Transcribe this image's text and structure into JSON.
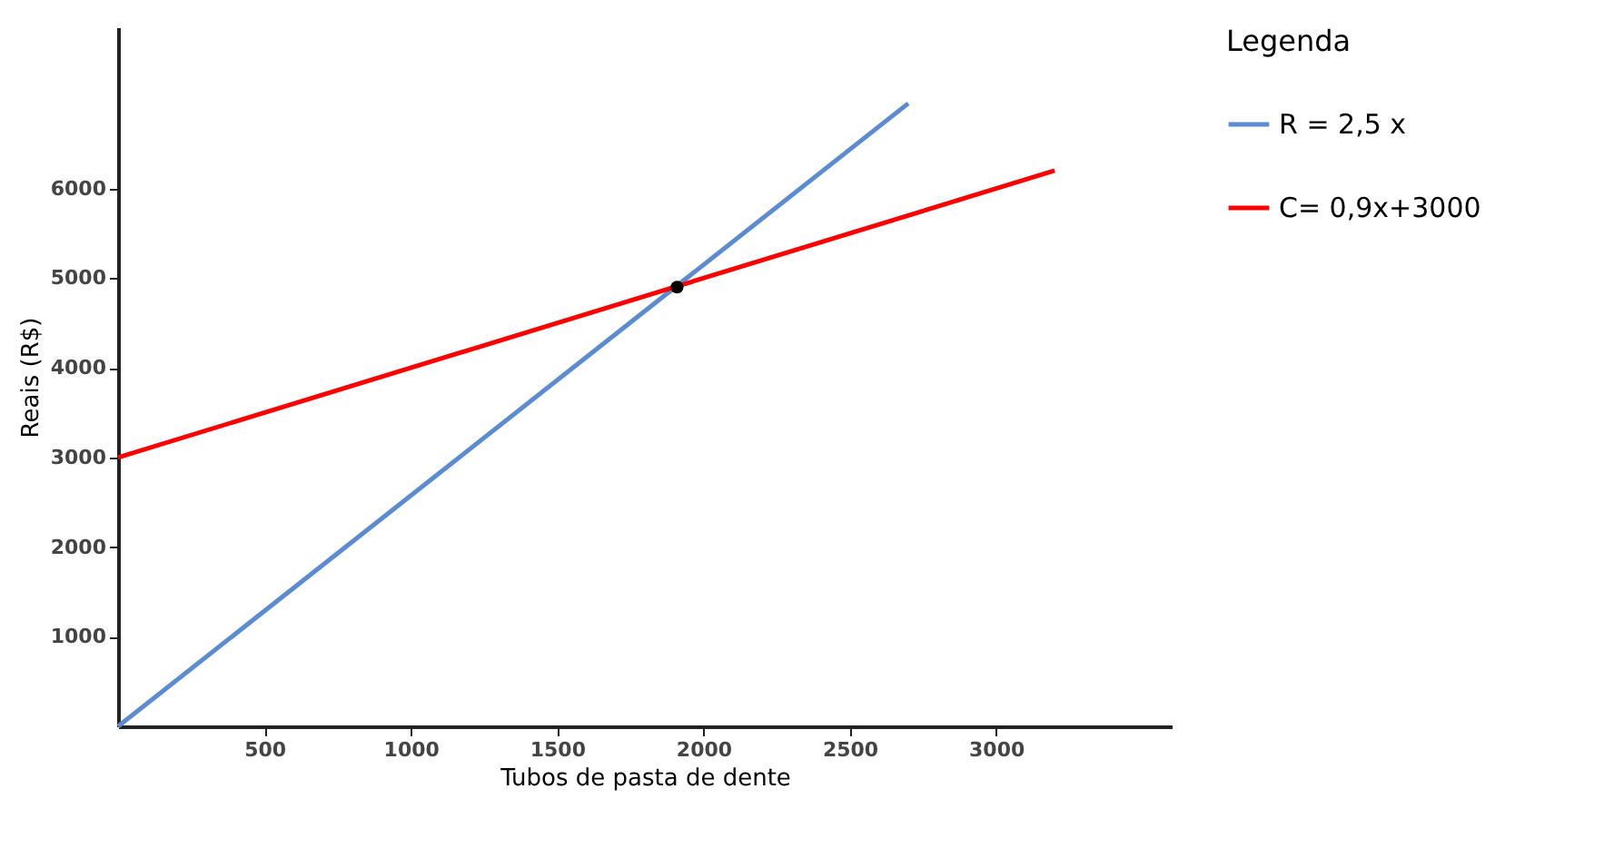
{
  "chart_data": {
    "type": "line",
    "xlabel": "Tubos de pasta de dente",
    "ylabel": "Reais (R$)",
    "legend_title": "Legenda",
    "legend": "right",
    "grid": false,
    "marker": "none",
    "line_style": "solid",
    "xlim": [
      0,
      3600
    ],
    "ylim": [
      0,
      7800
    ],
    "xticks": [
      500,
      1000,
      1500,
      2000,
      2500,
      3000
    ],
    "yticks": [
      1000,
      2000,
      3000,
      4000,
      5000,
      6000
    ],
    "series": [
      {
        "name": "R = 2,5 x",
        "color": "#5b8bd0",
        "x": [
          0,
          2700
        ],
        "values": [
          0,
          6950
        ]
      },
      {
        "name": "C= 0,9x+3000",
        "color": "#ff0000",
        "x": [
          0,
          3200
        ],
        "values": [
          3000,
          6200
        ]
      },
      {
        "type": "scatter",
        "marker": "circle",
        "color": "#000000",
        "x": [
          1910
        ],
        "values": [
          4900
        ]
      }
    ]
  }
}
